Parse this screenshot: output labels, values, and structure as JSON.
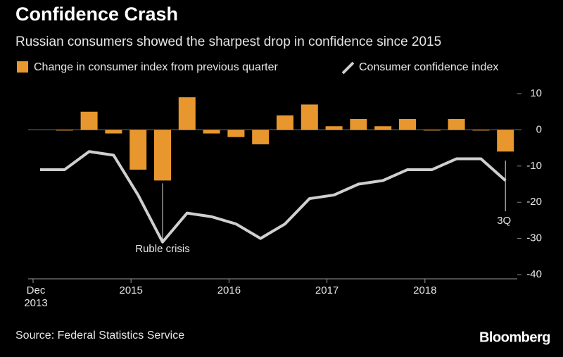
{
  "chart_data": {
    "type": "bar_line",
    "title": "Confidence Crash",
    "subtitle": "Russian consumers showed the sharpest drop in confidence since 2015",
    "categories": [
      "Dec 2013",
      null,
      null,
      null,
      "2015",
      null,
      null,
      null,
      "2016",
      null,
      null,
      null,
      "2017",
      null,
      null,
      null,
      "2018",
      null,
      null,
      null
    ],
    "series": [
      {
        "name": "Change in consumer index from previous quarter",
        "type": "bar",
        "color": "#e8962e",
        "values": [
          null,
          0,
          5,
          -1,
          -11,
          -14,
          9,
          -1,
          -2,
          -4,
          4,
          7,
          1,
          3,
          1,
          3,
          0,
          3,
          0,
          -6
        ]
      },
      {
        "name": "Consumer confidence index",
        "type": "line",
        "color": "#cfcfcf",
        "values": [
          -11,
          -11,
          -6,
          -7,
          -18,
          -31,
          -23,
          -24,
          -26,
          -30,
          -26,
          -19,
          -18,
          -15,
          -14,
          -11,
          -11,
          -8,
          -8,
          -14
        ]
      }
    ],
    "ylim": [
      -40,
      10
    ],
    "yticks": [
      10,
      0,
      -10,
      -20,
      -30,
      -40
    ],
    "annotations": [
      {
        "text": "Ruble crisis",
        "index": 5
      },
      {
        "text": "3Q",
        "index": 19
      }
    ],
    "legend": "top-left",
    "source": "Source: Federal Statistics Service",
    "brand": "Bloomberg"
  }
}
